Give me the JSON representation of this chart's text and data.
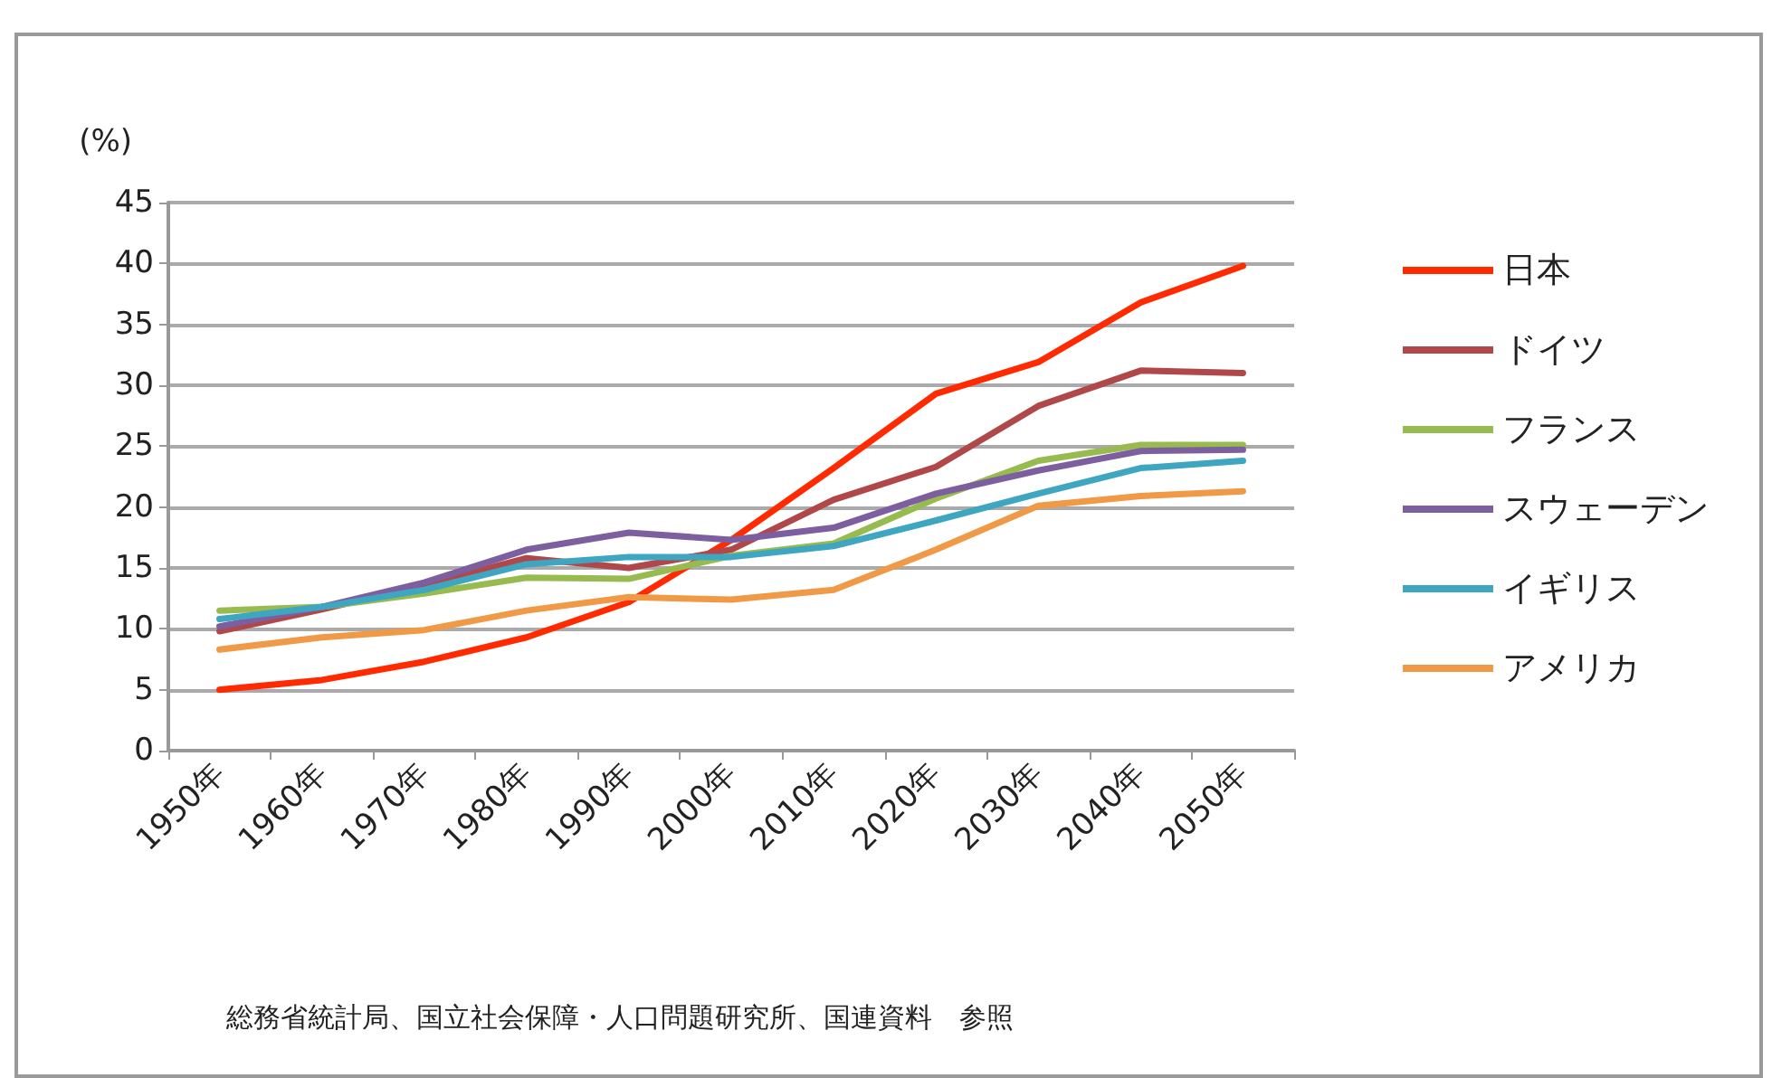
{
  "chart_data": {
    "type": "line",
    "ylabel": "(%)",
    "categories": [
      "1950年",
      "1960年",
      "1970年",
      "1980年",
      "1990年",
      "2000年",
      "2010年",
      "2020年",
      "2030年",
      "2040年",
      "2050年"
    ],
    "series": [
      {
        "name": "日本",
        "color": "#ff2a00",
        "values": [
          5.0,
          5.8,
          7.3,
          9.3,
          12.2,
          17.3,
          23.2,
          29.3,
          31.9,
          36.8,
          39.8
        ]
      },
      {
        "name": "ドイツ",
        "color": "#b0484a",
        "values": [
          9.8,
          11.6,
          13.6,
          15.8,
          15.0,
          16.5,
          20.6,
          23.3,
          28.3,
          31.2,
          31.0
        ]
      },
      {
        "name": "フランス",
        "color": "#98bb50",
        "values": [
          11.5,
          11.8,
          12.9,
          14.2,
          14.1,
          16.0,
          17.0,
          20.7,
          23.8,
          25.1,
          25.1
        ]
      },
      {
        "name": "スウェーデン",
        "color": "#7d5fa0",
        "values": [
          10.2,
          11.8,
          13.8,
          16.5,
          17.9,
          17.3,
          18.3,
          21.1,
          23.0,
          24.6,
          24.7
        ]
      },
      {
        "name": "イギリス",
        "color": "#3fa6c2",
        "values": [
          10.8,
          11.8,
          13.2,
          15.3,
          15.9,
          15.9,
          16.8,
          18.9,
          21.1,
          23.2,
          23.8
        ]
      },
      {
        "name": "アメリカ",
        "color": "#f09a48",
        "values": [
          8.3,
          9.3,
          9.9,
          11.5,
          12.6,
          12.4,
          13.2,
          16.5,
          20.1,
          20.9,
          21.3
        ]
      }
    ],
    "ylim": [
      0,
      45
    ],
    "yticks": [
      0,
      5,
      10,
      15,
      20,
      25,
      30,
      35,
      40,
      45
    ],
    "grid": "y",
    "legend": "right",
    "marker": "none",
    "line_style": "solid",
    "annotations": [
      "総務省統計局、国立社会保障・人口問題研究所、国連資料　参照"
    ]
  }
}
